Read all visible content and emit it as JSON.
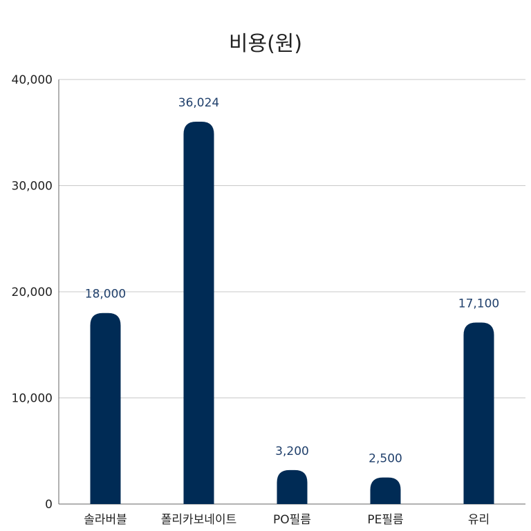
{
  "chart_data": {
    "type": "bar",
    "title": "비용(원)",
    "xlabel": "",
    "ylabel": "",
    "categories": [
      "솔라버블",
      "폴리카보네이트",
      "PO필름",
      "PE필름",
      "유리"
    ],
    "series": [
      {
        "values": [
          18000,
          36024,
          3200,
          2500,
          17100
        ],
        "color": "#002b55"
      }
    ],
    "data_labels": [
      "18,000",
      "36,024",
      "3,200",
      "2,500",
      "17,100"
    ],
    "ylim": [
      0,
      40000
    ],
    "yticks": [
      0,
      10000,
      20000,
      30000,
      40000
    ],
    "ytick_labels": [
      "0",
      "10,000",
      "20,000",
      "30,000",
      "40,000"
    ],
    "grid": true,
    "legend": "none",
    "colors": {
      "bar": "#002b55",
      "data_label": "#1f3f6b",
      "grid": "#c8c8c8",
      "axis": "#666666",
      "text": "#222222"
    }
  }
}
